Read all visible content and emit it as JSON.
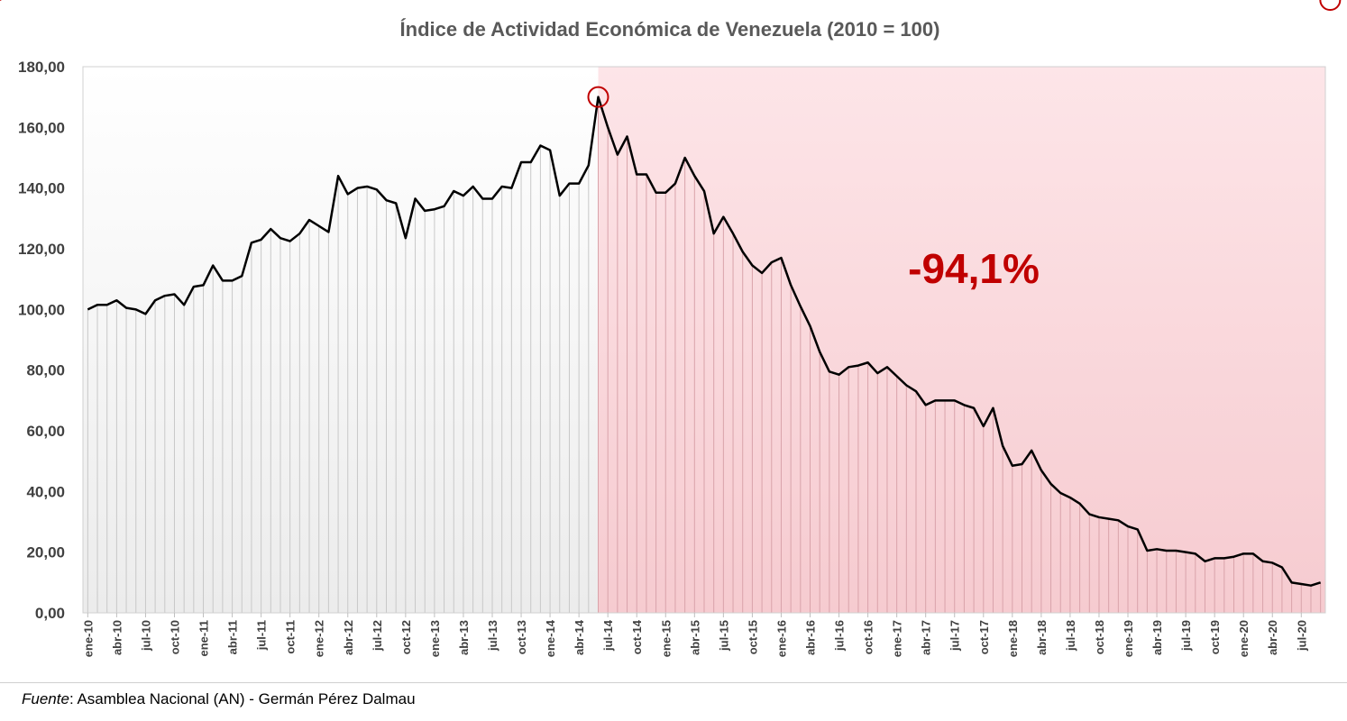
{
  "colors": {
    "line": "#000000",
    "highlight": "#C00000",
    "shade_pre": "#eeeeee",
    "shade_post": "#f8d0d5"
  },
  "source": {
    "label": "Fuente",
    "text": ": Asamblea Nacional (AN) - Germán Pérez Dalmau"
  },
  "chart_data": {
    "type": "line",
    "title": "Índice de Actividad Económica de Venezuela (2010 = 100)",
    "xlabel": "",
    "ylabel": "",
    "ylim": [
      0,
      180
    ],
    "yticks": [
      "0,00",
      "20,00",
      "40,00",
      "60,00",
      "80,00",
      "100,00",
      "120,00",
      "140,00",
      "160,00",
      "180,00"
    ],
    "x_tick_labels": [
      "ene-10",
      "abr-10",
      "jul-10",
      "oct-10",
      "ene-11",
      "abr-11",
      "jul-11",
      "oct-11",
      "ene-12",
      "abr-12",
      "jul-12",
      "oct-12",
      "ene-13",
      "abr-13",
      "jul-13",
      "oct-13",
      "ene-14",
      "abr-14",
      "jul-14",
      "oct-14",
      "ene-15",
      "abr-15",
      "jul-15",
      "oct-15",
      "ene-16",
      "abr-16",
      "jul-16",
      "oct-16",
      "ene-17",
      "abr-17",
      "jul-17",
      "oct-17",
      "ene-18",
      "abr-18",
      "jul-18",
      "oct-18",
      "ene-19",
      "abr-19",
      "jul-19",
      "oct-19",
      "ene-20",
      "abr-20",
      "jul-20"
    ],
    "start_period": "ene-10",
    "frequency": "monthly",
    "values": [
      100,
      101.5,
      101.5,
      103,
      100.5,
      100,
      98.5,
      103,
      104.5,
      105,
      101.5,
      107.5,
      108,
      114.5,
      109.5,
      109.5,
      111,
      122,
      123,
      126.5,
      123.5,
      122.5,
      125,
      129.5,
      127.5,
      125.5,
      144,
      138,
      140,
      140.5,
      139.5,
      136,
      135,
      123.5,
      136.5,
      132.5,
      133,
      134,
      139,
      137.5,
      140.5,
      136.5,
      136.5,
      140.5,
      140,
      148.5,
      148.5,
      154,
      152.5,
      137.5,
      141.5,
      141.5,
      147.5,
      170,
      160,
      151,
      157,
      144.5,
      144.5,
      138.5,
      138.5,
      141.5,
      150,
      144,
      139,
      125,
      130.5,
      125,
      119,
      114.5,
      112,
      115.5,
      117,
      108,
      101,
      94.5,
      86,
      79.5,
      78.5,
      81,
      81.5,
      82.5,
      79,
      81,
      78,
      75,
      73,
      68.5,
      70,
      70,
      70,
      68.5,
      67.5,
      61.5,
      67.5,
      55,
      48.5,
      49,
      53.5,
      47,
      42.5,
      39.5,
      38,
      36,
      32.5,
      31.5,
      31,
      30.5,
      28.5,
      27.5,
      20.5,
      21,
      20.5,
      20.5,
      20,
      19.5,
      17,
      18,
      18,
      18.5,
      19.5,
      19.5,
      17,
      16.5,
      15,
      10,
      9.5,
      9,
      10
    ],
    "shaded_regions": [
      {
        "from_index": 0,
        "to_index": 53,
        "color": "#eeeeee"
      },
      {
        "from_index": 53,
        "to_index": 129,
        "color": "#f8d0d5"
      }
    ],
    "annotations": [
      {
        "type": "arrow",
        "from_index": 53,
        "to_index": 129,
        "text": "-94,1%"
      }
    ],
    "grid": false,
    "legend": "none"
  }
}
